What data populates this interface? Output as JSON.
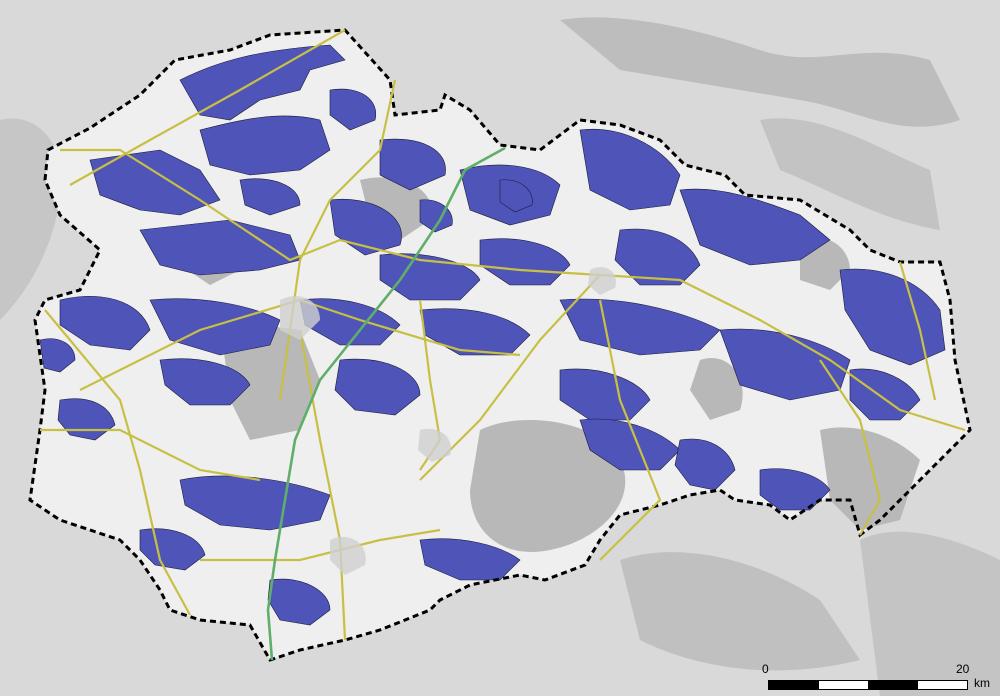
{
  "map": {
    "colors": {
      "background": "#d6d6d6",
      "region_fill": "#f2f2f2",
      "water_areas": "#4f55b8",
      "roads": "#c8bf45",
      "rail_line": "#5fae6a",
      "boundary": "#000000",
      "forest_gray": "#b5b5b5"
    },
    "scale": {
      "start_label": "0",
      "end_label": "20",
      "unit": "km"
    }
  }
}
